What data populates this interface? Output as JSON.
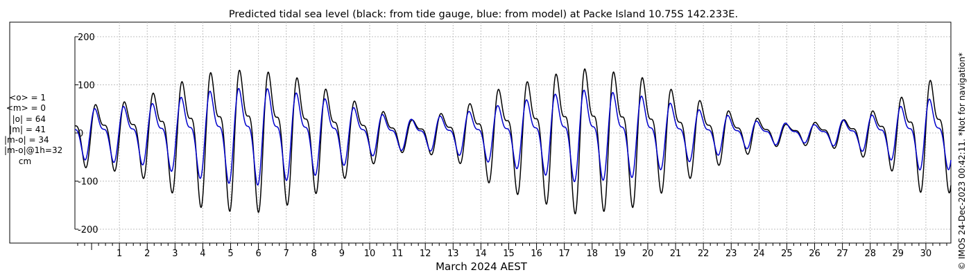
{
  "stats": {
    "mean_obs": "<o> = 1",
    "mean_model": "<m> = 0",
    "abs_obs": "|o| = 64",
    "abs_model": "|m| = 41",
    "abs_diff": "|m-o| = 34",
    "abs_diff_1h": "|m-o|@1h=32",
    "unit": "cm"
  },
  "credit": "© IMOS 24-Dec-2023 00:42:11. *Not for navigation*",
  "colors": {
    "observed": "#000000",
    "model": "#0000cc",
    "grid": "#bfbfbf"
  },
  "chart_data": {
    "type": "line",
    "title": "Predicted tidal sea level (black: from tide gauge, blue: from model) at Packe Island 10.75S 142.233E.",
    "xlabel": "March 2024 AEST",
    "ylabel": "",
    "ylim": [
      -215,
      215
    ],
    "xlim": [
      -0.6,
      30.9
    ],
    "x_unit": "day of March 2024",
    "x_ticks": [
      1,
      2,
      3,
      4,
      5,
      6,
      7,
      8,
      9,
      10,
      11,
      12,
      13,
      14,
      15,
      16,
      17,
      18,
      19,
      20,
      21,
      22,
      23,
      24,
      25,
      26,
      27,
      28,
      29,
      30
    ],
    "y_ticks": [
      -200,
      -100,
      0,
      100,
      200
    ],
    "grid": true,
    "series": [
      {
        "name": "from tide gauge",
        "color": "#000000",
        "amplitude_envelope": [
          [
            -0.6,
            62
          ],
          [
            1.5,
            75
          ],
          [
            4.0,
            140
          ],
          [
            5.8,
            150
          ],
          [
            7.5,
            128
          ],
          [
            10.0,
            60
          ],
          [
            11.5,
            30
          ],
          [
            13.2,
            55
          ],
          [
            14.5,
            100
          ],
          [
            17.5,
            152
          ],
          [
            19.5,
            138
          ],
          [
            21.5,
            85
          ],
          [
            23.2,
            45
          ],
          [
            25.0,
            20
          ],
          [
            27.0,
            30
          ],
          [
            28.5,
            60
          ],
          [
            30.2,
            125
          ],
          [
            30.9,
            110
          ]
        ],
        "mean_level": 0
      },
      {
        "name": "from model",
        "color": "#0000cc",
        "amplitude_envelope": [
          [
            -0.6,
            50
          ],
          [
            2.0,
            62
          ],
          [
            4.5,
            95
          ],
          [
            6.0,
            100
          ],
          [
            8.0,
            82
          ],
          [
            10.0,
            45
          ],
          [
            11.5,
            30
          ],
          [
            13.0,
            40
          ],
          [
            15.0,
            65
          ],
          [
            17.5,
            95
          ],
          [
            19.5,
            85
          ],
          [
            21.5,
            55
          ],
          [
            24.0,
            25
          ],
          [
            26.0,
            18
          ],
          [
            28.0,
            38
          ],
          [
            30.0,
            75
          ],
          [
            30.9,
            70
          ]
        ],
        "mean_level": 0
      }
    ]
  }
}
